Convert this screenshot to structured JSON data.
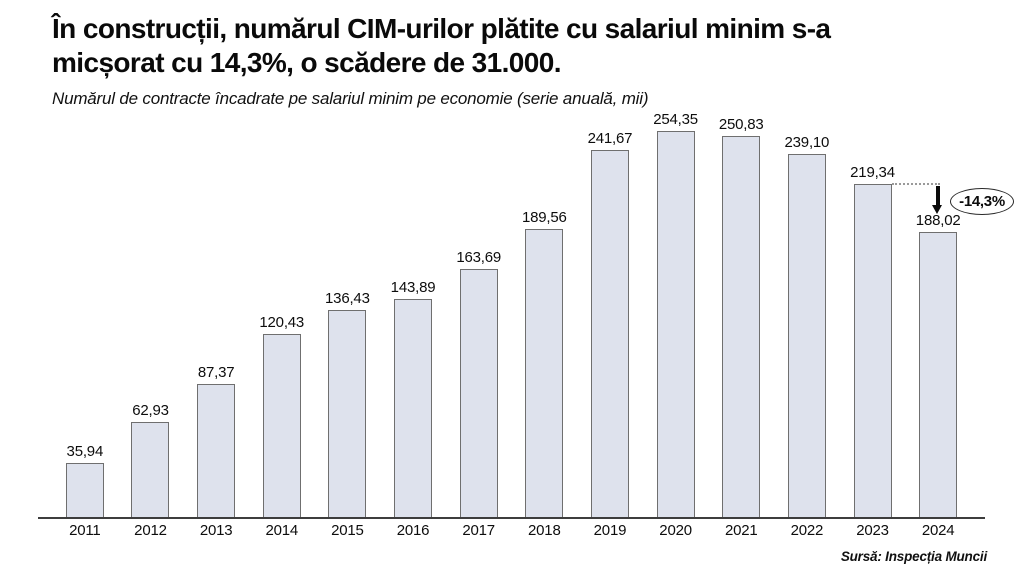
{
  "header": {
    "title": "În construcții, numărul CIM-urilor plătite cu salariul minim s-a micșorat cu 14,3%, o scădere de 31.000.",
    "title_line1": "În construcții, numărul CIM-urilor plătite cu salariul minim s-a",
    "title_line2": "micșorat cu 14,3%, o scădere de 31.000.",
    "subtitle": "Numărul de contracte încadrate pe salariul minim pe economie (serie anuală, mii)"
  },
  "chart_data": {
    "type": "bar",
    "title": "În construcții, numărul CIM-urilor plătite cu salariul minim s-a micșorat cu 14,3%, o scădere de 31.000.",
    "subtitle": "Numărul de contracte încadrate pe salariul minim pe economie (serie anuală, mii)",
    "categories": [
      "2011",
      "2012",
      "2013",
      "2014",
      "2015",
      "2016",
      "2017",
      "2018",
      "2019",
      "2020",
      "2021",
      "2022",
      "2023",
      "2024"
    ],
    "values": [
      35.94,
      62.93,
      87.37,
      120.43,
      136.43,
      143.89,
      163.69,
      189.56,
      241.67,
      254.35,
      250.83,
      239.1,
      219.34,
      188.02
    ],
    "value_labels": [
      "35,94",
      "62,93",
      "87,37",
      "120,43",
      "136,43",
      "143,89",
      "163,69",
      "189,56",
      "241,67",
      "254,35",
      "250,83",
      "239,10",
      "219,34",
      "188,02"
    ],
    "xlabel": "",
    "ylabel": "",
    "ylim": [
      0,
      260
    ],
    "grid": false,
    "legend": false,
    "bar_fill": "#dee2ed",
    "bar_border": "#6f6f6f",
    "annotation": {
      "label": "-14,3%",
      "from_category": "2023",
      "to_category": "2024"
    }
  },
  "footer": {
    "source": "Sursă: Inspecția Muncii"
  }
}
